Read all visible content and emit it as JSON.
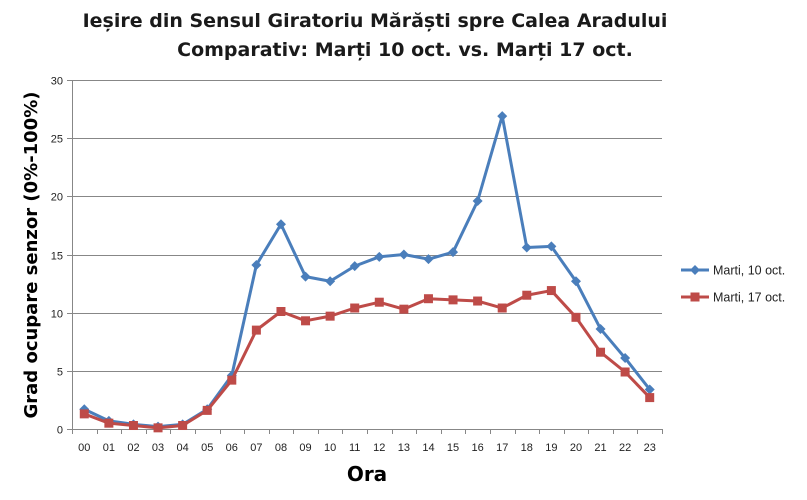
{
  "chart_data": {
    "type": "line",
    "title": [
      "Ieșire din Sensul Giratoriu Mărăști spre Calea Aradului",
      "Comparativ: Marți 10 oct. vs. Marți 17 oct."
    ],
    "xlabel": "Ora",
    "ylabel": "Grad ocupare senzor (0%-100%)",
    "ylim": [
      0,
      30
    ],
    "yticks": [
      "0",
      "5",
      "10",
      "15",
      "20",
      "25",
      "30"
    ],
    "grid": true,
    "legend_position": "right",
    "categories": [
      "00",
      "01",
      "02",
      "03",
      "04",
      "05",
      "06",
      "07",
      "08",
      "09",
      "10",
      "11",
      "12",
      "13",
      "14",
      "15",
      "16",
      "17",
      "18",
      "19",
      "20",
      "21",
      "22",
      "23"
    ],
    "series": [
      {
        "name": "Marti, 10 oct.",
        "color": "#4a7ebb",
        "marker": "diamond",
        "values": [
          1.7,
          0.7,
          0.4,
          0.2,
          0.4,
          1.7,
          4.6,
          14.1,
          17.6,
          13.1,
          12.7,
          14.0,
          14.8,
          15.0,
          14.6,
          15.2,
          19.6,
          26.9,
          15.6,
          15.7,
          12.7,
          8.6,
          6.1,
          3.4
        ]
      },
      {
        "name": "Marti, 17 oct.",
        "color": "#be4b48",
        "marker": "square",
        "values": [
          1.3,
          0.5,
          0.3,
          0.1,
          0.3,
          1.6,
          4.2,
          8.5,
          10.1,
          9.3,
          9.7,
          10.4,
          10.9,
          10.3,
          11.2,
          11.1,
          11.0,
          10.4,
          11.5,
          11.9,
          9.6,
          6.6,
          4.9,
          2.7
        ]
      }
    ]
  }
}
